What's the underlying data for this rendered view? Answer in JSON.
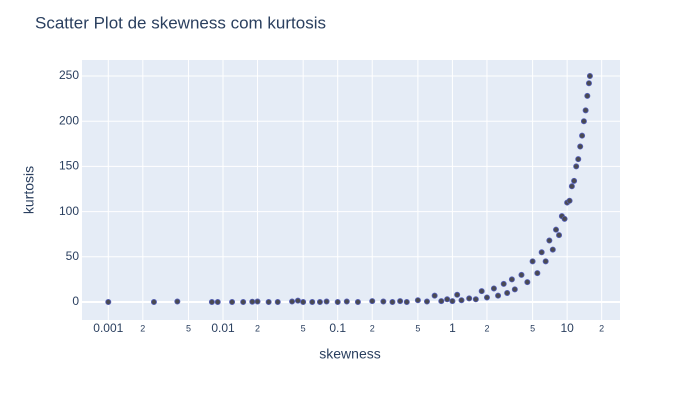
{
  "chart_data": {
    "type": "scatter",
    "title": "Scatter Plot de skewness com kurtosis",
    "x_label": "skewness",
    "y_label": "kurtosis",
    "xscale": "log",
    "grid": true,
    "xlim": [
      0.00059,
      28.9
    ],
    "ylim": [
      -19.9,
      267.7
    ],
    "xticks": [
      0.001,
      {
        "value": 0.002,
        "label": "2"
      },
      {
        "value": 0.005,
        "label": "5"
      },
      0.01,
      {
        "value": 0.02,
        "label": "2"
      },
      {
        "value": 0.05,
        "label": "5"
      },
      0.1,
      {
        "value": 0.2,
        "label": "2"
      },
      {
        "value": 0.5,
        "label": "5"
      },
      1,
      {
        "value": 2,
        "label": "2"
      },
      {
        "value": 5,
        "label": "5"
      },
      10,
      {
        "value": 20,
        "label": "2"
      }
    ],
    "yticks": [
      0,
      50,
      100,
      150,
      200,
      250
    ],
    "series": [
      {
        "color": "#4a4a52",
        "edge_color": "#5560b8",
        "x": [
          0.001,
          0.0025,
          0.004,
          0.008,
          0.009,
          0.012,
          0.015,
          0.018,
          0.02,
          0.025,
          0.03,
          0.04,
          0.045,
          0.05,
          0.06,
          0.07,
          0.08,
          0.1,
          0.12,
          0.15,
          0.2,
          0.25,
          0.3,
          0.35,
          0.4,
          0.5,
          0.6,
          0.7,
          0.8,
          0.9,
          1,
          1.1,
          1.2,
          1.4,
          1.6,
          1.8,
          2,
          2.3,
          2.5,
          2.8,
          3,
          3.3,
          3.5,
          4,
          4.5,
          5,
          5.5,
          6,
          6.5,
          7,
          7.5,
          8,
          8.5,
          9,
          9.5,
          10,
          10.5,
          11,
          11.5,
          12,
          12.5,
          13,
          13.5,
          14,
          14.5,
          15,
          15.5,
          15.8
        ],
        "values": [
          0,
          0,
          0.5,
          0,
          0,
          0,
          0,
          0.3,
          0.5,
          0,
          0,
          0.5,
          1.5,
          0,
          0,
          0,
          0.5,
          0,
          0.5,
          0,
          1,
          0.5,
          0,
          1,
          0,
          2,
          0.5,
          7,
          1,
          3,
          1,
          8,
          2,
          4,
          3,
          12,
          5,
          15,
          7,
          20,
          10,
          25,
          14,
          30,
          22,
          45,
          32,
          55,
          45,
          68,
          58,
          80,
          74,
          95,
          92,
          110,
          112,
          128,
          134,
          150,
          158,
          172,
          184,
          200,
          212,
          228,
          242,
          250
        ]
      }
    ]
  }
}
